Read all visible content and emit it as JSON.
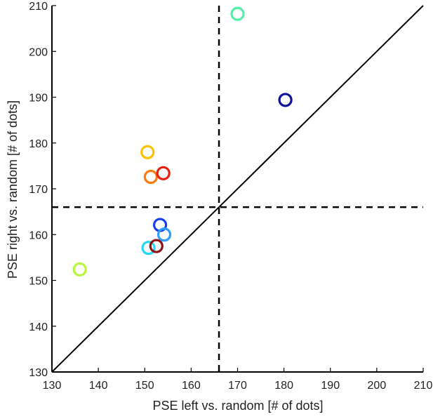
{
  "chart_data": {
    "type": "scatter",
    "xlabel": "PSE left vs. random [# of dots]",
    "ylabel": "PSE right vs. random [# of dots]",
    "xlim": [
      130,
      210
    ],
    "ylim": [
      130,
      210
    ],
    "x_ticks": [
      "130",
      "140",
      "150",
      "160",
      "170",
      "180",
      "190",
      "200",
      "210"
    ],
    "y_ticks": [
      "130",
      "140",
      "150",
      "160",
      "170",
      "180",
      "190",
      "200",
      "210"
    ],
    "grid": false,
    "reference_lines": {
      "identity_line": true,
      "vertical_dashed_x": 166,
      "horizontal_dashed_y": 166
    },
    "points": [
      {
        "x": 170.0,
        "y": 208.2,
        "color": "#55f0a8"
      },
      {
        "x": 180.3,
        "y": 189.4,
        "color": "#1010a0"
      },
      {
        "x": 150.6,
        "y": 178.0,
        "color": "#ffc000"
      },
      {
        "x": 151.3,
        "y": 172.6,
        "color": "#ff7a10"
      },
      {
        "x": 154.0,
        "y": 173.4,
        "color": "#e82010"
      },
      {
        "x": 153.3,
        "y": 162.1,
        "color": "#1840ee"
      },
      {
        "x": 154.2,
        "y": 160.0,
        "color": "#2f9cff"
      },
      {
        "x": 150.8,
        "y": 157.1,
        "color": "#25d8f0"
      },
      {
        "x": 152.5,
        "y": 157.5,
        "color": "#8e1010"
      },
      {
        "x": 136.0,
        "y": 152.4,
        "color": "#b8f540"
      }
    ]
  }
}
